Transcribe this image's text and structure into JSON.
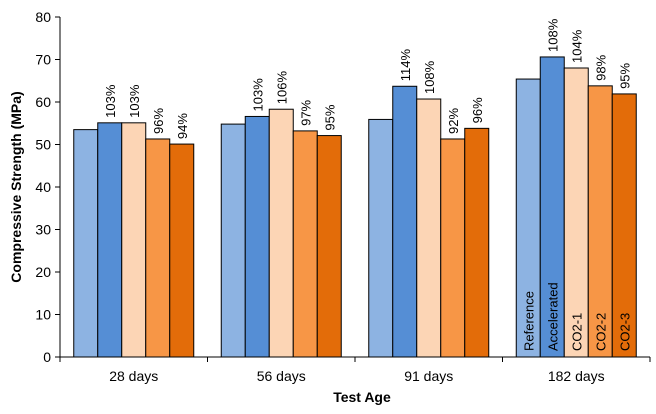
{
  "chart_data": {
    "type": "bar",
    "title": "",
    "xlabel": "Test Age",
    "ylabel": "Compressive Strength (MPa)",
    "ylim": [
      0,
      80
    ],
    "yticks": [
      "0",
      "10",
      "20",
      "30",
      "40",
      "50",
      "60",
      "70",
      "80"
    ],
    "grid": false,
    "legend": "series names printed vertically inside the 182 days bars",
    "categories": [
      "28 days",
      "56 days",
      "91 days",
      "182 days"
    ],
    "series": [
      {
        "name": "Reference",
        "color": "#8db3e2",
        "values": [
          53.5,
          54.8,
          55.9,
          65.4
        ],
        "labels": [
          "",
          "",
          "",
          ""
        ]
      },
      {
        "name": "Accelerated",
        "color": "#558ed5",
        "values": [
          55.1,
          56.6,
          63.7,
          70.6
        ],
        "labels": [
          "103%",
          "103%",
          "114%",
          "108%"
        ]
      },
      {
        "name": "CO2-1",
        "color": "#fcd5b5",
        "values": [
          55.1,
          58.3,
          60.7,
          68.0
        ],
        "labels": [
          "103%",
          "106%",
          "108%",
          "104%"
        ]
      },
      {
        "name": "CO2-2",
        "color": "#f79646",
        "values": [
          51.3,
          53.2,
          51.3,
          63.8
        ],
        "labels": [
          "96%",
          "97%",
          "92%",
          "98%"
        ]
      },
      {
        "name": "CO2-3",
        "color": "#e36c09",
        "values": [
          50.1,
          52.1,
          53.8,
          61.9
        ],
        "labels": [
          "94%",
          "95%",
          "96%",
          "95%"
        ]
      }
    ]
  }
}
